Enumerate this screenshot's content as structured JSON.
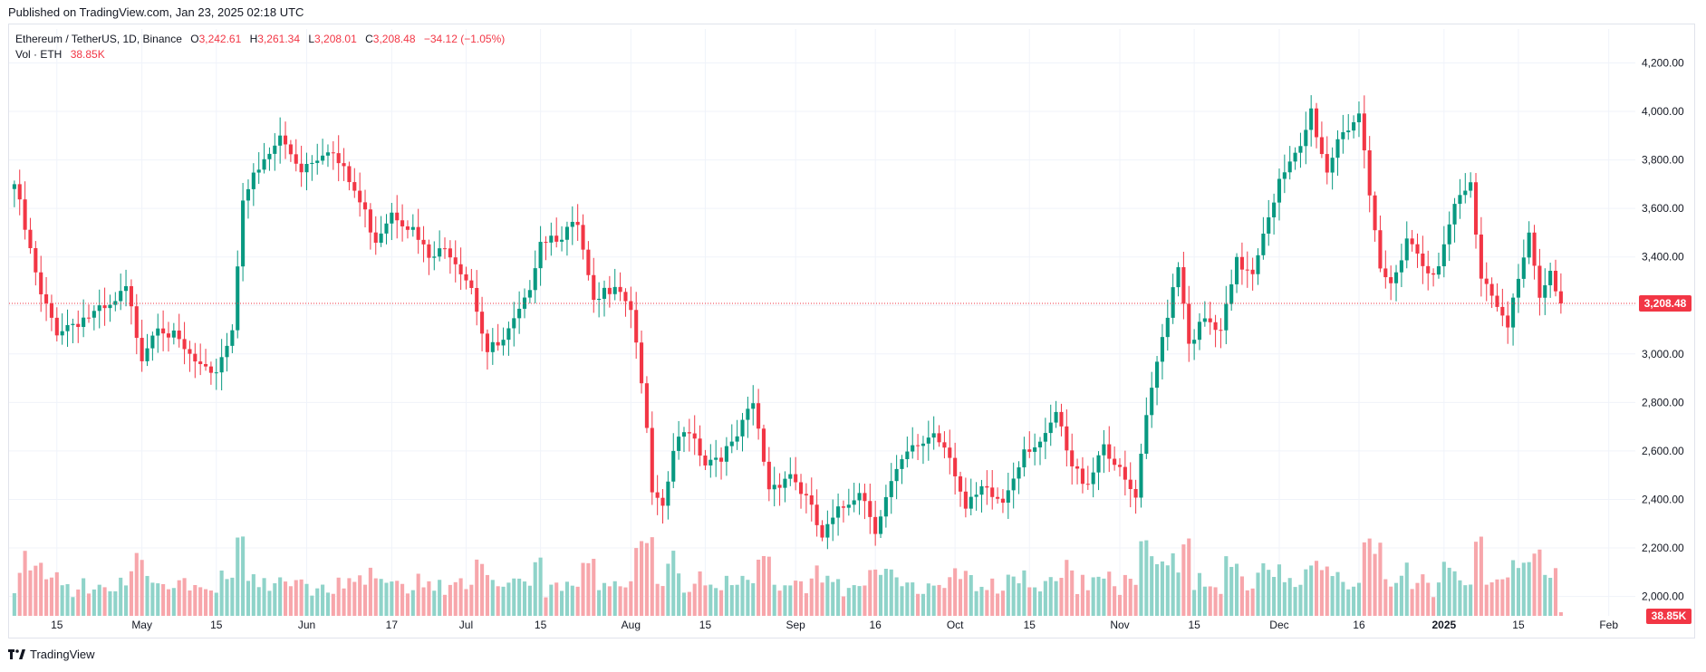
{
  "header": {
    "published": "Published on TradingView.com, Jan 23, 2025 02:18 UTC"
  },
  "legend": {
    "symbol": "Ethereum / TetherUS, 1D, Binance",
    "o_label": "O",
    "o_value": "3,242.61",
    "h_label": "H",
    "h_value": "3,261.34",
    "l_label": "L",
    "l_value": "3,208.01",
    "c_label": "C",
    "c_value": "3,208.48",
    "change": "−34.12 (−1.05%)",
    "vol_label": "Vol · ETH",
    "vol_value": "38.85K"
  },
  "price_tag": "3,208.48",
  "volume_tag": "38.85K",
  "footer": {
    "brand": "TradingView"
  },
  "colors": {
    "up": "#089981",
    "down": "#f23645",
    "up_volume": "#8fd3c9",
    "down_volume": "#f7a6ab",
    "grid": "#f0f3fa",
    "axis_text": "#131722"
  },
  "chart_data": {
    "type": "candlestick",
    "symbol": "ETHUSDT",
    "interval": "1D",
    "y_axis": {
      "range": [
        1920,
        4340
      ],
      "ticks": [
        2000,
        2200,
        2400,
        2600,
        2800,
        3000,
        3200,
        3400,
        3600,
        3800,
        4000,
        4200
      ],
      "tick_labels": [
        "2,000.00",
        "2,200.00",
        "2,400.00",
        "2,600.00",
        "2,800.00",
        "3,000.00",
        "3,200.00",
        "3,400.00",
        "3,600.00",
        "3,800.00",
        "4,000.00",
        "4,200.00"
      ]
    },
    "x_axis": {
      "labels": [
        {
          "text": "15",
          "date": "2024-04-15",
          "bold": false
        },
        {
          "text": "May",
          "date": "2024-05-01",
          "bold": false
        },
        {
          "text": "15",
          "date": "2024-05-15",
          "bold": false
        },
        {
          "text": "Jun",
          "date": "2024-06-01",
          "bold": false
        },
        {
          "text": "17",
          "date": "2024-06-17",
          "bold": false
        },
        {
          "text": "Jul",
          "date": "2024-07-01",
          "bold": false
        },
        {
          "text": "15",
          "date": "2024-07-15",
          "bold": false
        },
        {
          "text": "Aug",
          "date": "2024-08-01",
          "bold": false
        },
        {
          "text": "15",
          "date": "2024-08-15",
          "bold": false
        },
        {
          "text": "Sep",
          "date": "2024-09-01",
          "bold": false
        },
        {
          "text": "16",
          "date": "2024-09-16",
          "bold": false
        },
        {
          "text": "Oct",
          "date": "2024-10-01",
          "bold": false
        },
        {
          "text": "15",
          "date": "2024-10-15",
          "bold": false
        },
        {
          "text": "Nov",
          "date": "2024-11-01",
          "bold": false
        },
        {
          "text": "15",
          "date": "2024-11-15",
          "bold": false
        },
        {
          "text": "Dec",
          "date": "2024-12-01",
          "bold": false
        },
        {
          "text": "16",
          "date": "2024-12-16",
          "bold": false
        },
        {
          "text": "2025",
          "date": "2025-01-01",
          "bold": true
        },
        {
          "text": "15",
          "date": "2025-01-15",
          "bold": false
        },
        {
          "text": "Feb",
          "date": "2025-02-01",
          "bold": false
        }
      ]
    },
    "close_series": [
      {
        "date": "2024-04-07",
        "close": 3700
      },
      {
        "date": "2024-04-09",
        "close": 3510
      },
      {
        "date": "2024-04-12",
        "close": 3230
      },
      {
        "date": "2024-04-15",
        "close": 3100
      },
      {
        "date": "2024-04-20",
        "close": 3150
      },
      {
        "date": "2024-04-25",
        "close": 3180
      },
      {
        "date": "2024-04-28",
        "close": 3260
      },
      {
        "date": "2024-05-01",
        "close": 3000
      },
      {
        "date": "2024-05-04",
        "close": 3140
      },
      {
        "date": "2024-05-09",
        "close": 3010
      },
      {
        "date": "2024-05-14",
        "close": 2890
      },
      {
        "date": "2024-05-18",
        "close": 3100
      },
      {
        "date": "2024-05-20",
        "close": 3660
      },
      {
        "date": "2024-05-23",
        "close": 3750
      },
      {
        "date": "2024-05-27",
        "close": 3890
      },
      {
        "date": "2024-05-31",
        "close": 3770
      },
      {
        "date": "2024-06-05",
        "close": 3860
      },
      {
        "date": "2024-06-10",
        "close": 3670
      },
      {
        "date": "2024-06-14",
        "close": 3480
      },
      {
        "date": "2024-06-17",
        "close": 3600
      },
      {
        "date": "2024-06-20",
        "close": 3540
      },
      {
        "date": "2024-06-24",
        "close": 3390
      },
      {
        "date": "2024-06-28",
        "close": 3430
      },
      {
        "date": "2024-07-02",
        "close": 3290
      },
      {
        "date": "2024-07-05",
        "close": 3010
      },
      {
        "date": "2024-07-08",
        "close": 3040
      },
      {
        "date": "2024-07-12",
        "close": 3200
      },
      {
        "date": "2024-07-15",
        "close": 3480
      },
      {
        "date": "2024-07-19",
        "close": 3500
      },
      {
        "date": "2024-07-22",
        "close": 3520
      },
      {
        "date": "2024-07-25",
        "close": 3190
      },
      {
        "date": "2024-07-29",
        "close": 3310
      },
      {
        "date": "2024-08-01",
        "close": 3200
      },
      {
        "date": "2024-08-03",
        "close": 2900
      },
      {
        "date": "2024-08-05",
        "close": 2420
      },
      {
        "date": "2024-08-07",
        "close": 2340
      },
      {
        "date": "2024-08-09",
        "close": 2600
      },
      {
        "date": "2024-08-12",
        "close": 2700
      },
      {
        "date": "2024-08-15",
        "close": 2560
      },
      {
        "date": "2024-08-20",
        "close": 2610
      },
      {
        "date": "2024-08-24",
        "close": 2790
      },
      {
        "date": "2024-08-27",
        "close": 2450
      },
      {
        "date": "2024-08-31",
        "close": 2510
      },
      {
        "date": "2024-09-03",
        "close": 2400
      },
      {
        "date": "2024-09-06",
        "close": 2240
      },
      {
        "date": "2024-09-09",
        "close": 2340
      },
      {
        "date": "2024-09-13",
        "close": 2450
      },
      {
        "date": "2024-09-16",
        "close": 2290
      },
      {
        "date": "2024-09-19",
        "close": 2460
      },
      {
        "date": "2024-09-22",
        "close": 2580
      },
      {
        "date": "2024-09-27",
        "close": 2680
      },
      {
        "date": "2024-09-30",
        "close": 2600
      },
      {
        "date": "2024-10-03",
        "close": 2350
      },
      {
        "date": "2024-10-06",
        "close": 2430
      },
      {
        "date": "2024-10-10",
        "close": 2390
      },
      {
        "date": "2024-10-14",
        "close": 2620
      },
      {
        "date": "2024-10-18",
        "close": 2640
      },
      {
        "date": "2024-10-20",
        "close": 2750
      },
      {
        "date": "2024-10-23",
        "close": 2520
      },
      {
        "date": "2024-10-26",
        "close": 2480
      },
      {
        "date": "2024-10-29",
        "close": 2640
      },
      {
        "date": "2024-11-01",
        "close": 2500
      },
      {
        "date": "2024-11-04",
        "close": 2400
      },
      {
        "date": "2024-11-06",
        "close": 2720
      },
      {
        "date": "2024-11-08",
        "close": 2960
      },
      {
        "date": "2024-11-10",
        "close": 3180
      },
      {
        "date": "2024-11-12",
        "close": 3380
      },
      {
        "date": "2024-11-14",
        "close": 3060
      },
      {
        "date": "2024-11-17",
        "close": 3130
      },
      {
        "date": "2024-11-20",
        "close": 3080
      },
      {
        "date": "2024-11-23",
        "close": 3370
      },
      {
        "date": "2024-11-26",
        "close": 3350
      },
      {
        "date": "2024-11-29",
        "close": 3590
      },
      {
        "date": "2024-12-01",
        "close": 3700
      },
      {
        "date": "2024-12-05",
        "close": 3840
      },
      {
        "date": "2024-12-07",
        "close": 4000
      },
      {
        "date": "2024-12-10",
        "close": 3750
      },
      {
        "date": "2024-12-12",
        "close": 3900
      },
      {
        "date": "2024-12-16",
        "close": 3990
      },
      {
        "date": "2024-12-18",
        "close": 3620
      },
      {
        "date": "2024-12-20",
        "close": 3340
      },
      {
        "date": "2024-12-22",
        "close": 3280
      },
      {
        "date": "2024-12-25",
        "close": 3490
      },
      {
        "date": "2024-12-28",
        "close": 3380
      },
      {
        "date": "2024-12-31",
        "close": 3340
      },
      {
        "date": "2025-01-03",
        "close": 3610
      },
      {
        "date": "2025-01-06",
        "close": 3690
      },
      {
        "date": "2025-01-08",
        "close": 3330
      },
      {
        "date": "2025-01-10",
        "close": 3260
      },
      {
        "date": "2025-01-13",
        "close": 3140
      },
      {
        "date": "2025-01-15",
        "close": 3300
      },
      {
        "date": "2025-01-17",
        "close": 3470
      },
      {
        "date": "2025-01-19",
        "close": 3220
      },
      {
        "date": "2025-01-21",
        "close": 3330
      },
      {
        "date": "2025-01-23",
        "close": 3208.48
      }
    ],
    "last_price": 3208.48,
    "volume_series": {
      "name": "Vol · ETH",
      "last": "38.85K"
    }
  }
}
